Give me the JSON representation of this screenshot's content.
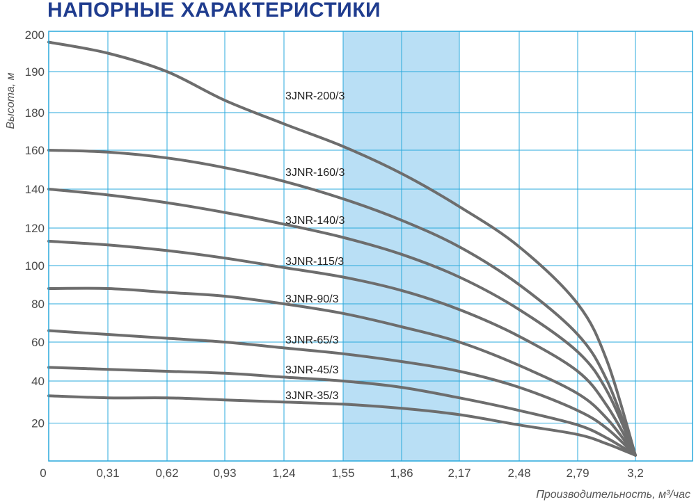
{
  "title": "НАПОРНЫЕ ХАРАКТЕРИСТИКИ",
  "colors": {
    "title": "#1f3c8e",
    "frame": "#29a8dc",
    "grid": "#29a8dc",
    "band": "#b9dff5",
    "curve": "#6d6d6d"
  },
  "chart_data": {
    "type": "line",
    "title": "НАПОРНЫЕ ХАРАКТЕРИСТИКИ",
    "xlabel": "Производительность, м³/час",
    "ylabel": "Высота, м",
    "xlim": [
      0,
      3.6
    ],
    "ylim": [
      0,
      200
    ],
    "x_ticks": [
      "0",
      "0,31",
      "0,62",
      "0,93",
      "1,24",
      "1,55",
      "1,86",
      "2,17",
      "2,48",
      "2,79",
      "3,2"
    ],
    "y_ticks": [
      "20",
      "40",
      "60",
      "80",
      "100",
      "120",
      "140",
      "160",
      "180",
      "190",
      "200"
    ],
    "grid": true,
    "highlight_band": {
      "from": 1.55,
      "to": 2.17
    },
    "series": [
      {
        "name": "3JNR-200/3",
        "points": [
          [
            0,
            198
          ],
          [
            0.31,
            195
          ],
          [
            0.62,
            190
          ],
          [
            0.93,
            183
          ],
          [
            1.24,
            174
          ],
          [
            1.55,
            162
          ],
          [
            1.86,
            148
          ],
          [
            2.17,
            131
          ],
          [
            2.48,
            110
          ],
          [
            2.79,
            80
          ],
          [
            3.0,
            50
          ],
          [
            3.2,
            3
          ]
        ]
      },
      {
        "name": "3JNR-160/3",
        "points": [
          [
            0,
            160
          ],
          [
            0.31,
            159
          ],
          [
            0.62,
            156
          ],
          [
            0.93,
            151
          ],
          [
            1.24,
            144
          ],
          [
            1.55,
            135
          ],
          [
            1.86,
            124
          ],
          [
            2.17,
            110
          ],
          [
            2.48,
            90
          ],
          [
            2.79,
            64
          ],
          [
            3.0,
            40
          ],
          [
            3.2,
            3
          ]
        ]
      },
      {
        "name": "3JNR-140/3",
        "points": [
          [
            0,
            140
          ],
          [
            0.31,
            137
          ],
          [
            0.62,
            133
          ],
          [
            0.93,
            128
          ],
          [
            1.24,
            122
          ],
          [
            1.55,
            115
          ],
          [
            1.86,
            106
          ],
          [
            2.17,
            94
          ],
          [
            2.48,
            77
          ],
          [
            2.79,
            55
          ],
          [
            3.0,
            35
          ],
          [
            3.2,
            3
          ]
        ]
      },
      {
        "name": "3JNR-115/3",
        "points": [
          [
            0,
            113
          ],
          [
            0.31,
            111
          ],
          [
            0.62,
            108
          ],
          [
            0.93,
            104
          ],
          [
            1.24,
            99
          ],
          [
            1.55,
            94
          ],
          [
            1.86,
            87
          ],
          [
            2.17,
            77
          ],
          [
            2.48,
            63
          ],
          [
            2.79,
            45
          ],
          [
            3.0,
            28
          ],
          [
            3.2,
            3
          ]
        ]
      },
      {
        "name": "3JNR-90/3",
        "points": [
          [
            0,
            88
          ],
          [
            0.31,
            88
          ],
          [
            0.62,
            86
          ],
          [
            0.93,
            84
          ],
          [
            1.24,
            80
          ],
          [
            1.55,
            75
          ],
          [
            1.86,
            68
          ],
          [
            2.17,
            60
          ],
          [
            2.48,
            48
          ],
          [
            2.79,
            34
          ],
          [
            3.0,
            22
          ],
          [
            3.2,
            3
          ]
        ]
      },
      {
        "name": "3JNR-65/3",
        "points": [
          [
            0,
            66
          ],
          [
            0.31,
            64
          ],
          [
            0.62,
            62
          ],
          [
            0.93,
            60
          ],
          [
            1.24,
            57
          ],
          [
            1.55,
            54
          ],
          [
            1.86,
            50
          ],
          [
            2.17,
            45
          ],
          [
            2.48,
            37
          ],
          [
            2.79,
            26
          ],
          [
            3.0,
            17
          ],
          [
            3.2,
            3
          ]
        ]
      },
      {
        "name": "3JNR-45/3",
        "points": [
          [
            0,
            47
          ],
          [
            0.31,
            46
          ],
          [
            0.62,
            45
          ],
          [
            0.93,
            44
          ],
          [
            1.24,
            42
          ],
          [
            1.55,
            40
          ],
          [
            1.86,
            37
          ],
          [
            2.17,
            32
          ],
          [
            2.48,
            26
          ],
          [
            2.79,
            19
          ],
          [
            3.0,
            12
          ],
          [
            3.2,
            3
          ]
        ]
      },
      {
        "name": "3JNR-35/3",
        "points": [
          [
            0,
            33
          ],
          [
            0.31,
            32
          ],
          [
            0.62,
            32
          ],
          [
            0.93,
            31
          ],
          [
            1.24,
            30
          ],
          [
            1.55,
            29
          ],
          [
            1.86,
            27
          ],
          [
            2.17,
            24
          ],
          [
            2.48,
            19
          ],
          [
            2.79,
            14
          ],
          [
            3.0,
            9
          ],
          [
            3.2,
            3
          ]
        ]
      }
    ]
  }
}
